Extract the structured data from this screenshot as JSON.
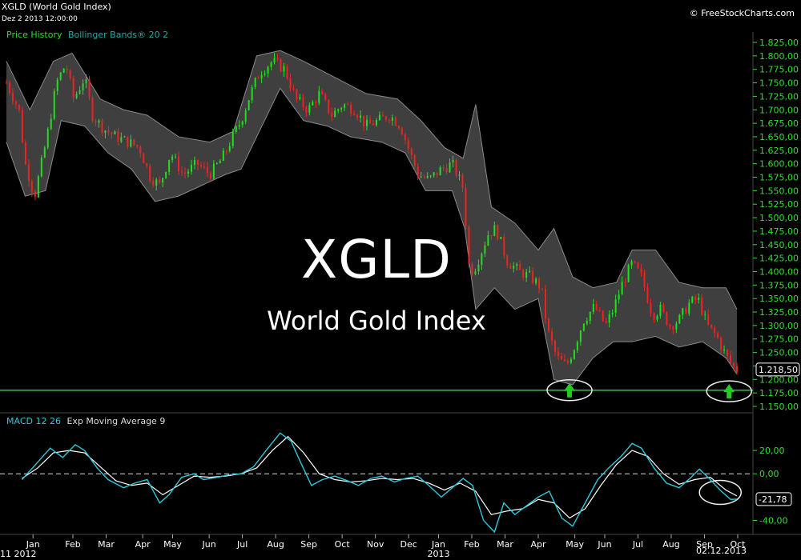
{
  "header": {
    "title": "XGLD (World Gold Index)",
    "date": "Dez 2 2013 12:00:00",
    "credit": "© FreeStockCharts.com",
    "legend_price": "Price History",
    "legend_bands": "Bollinger Bands® 20 2",
    "macd_label": "MACD 12 26",
    "macd_signal": "Exp Moving Average 9"
  },
  "watermark": {
    "title": "XGLD",
    "subtitle": "World Gold Index"
  },
  "colors": {
    "up": "#22dd22",
    "down": "#ee2222",
    "band": "#8a8a8a",
    "macd": "#2ec8d8",
    "signal": "#ffffff",
    "support": "#2ecc2e",
    "axis_text": "#33dd33",
    "arrow": "#22cc22"
  },
  "chart_data": [
    {
      "type": "line",
      "title": "XGLD (World Gold Index)",
      "series_name": "Price History",
      "overlay": "Bollinger Bands® 20 2",
      "ylim": [
        1150,
        1825
      ],
      "y_ticks": [
        "1.825,00",
        "1.800,00",
        "1.775,00",
        "1.750,00",
        "1.725,00",
        "1.700,00",
        "1.675,00",
        "1.650,00",
        "1.625,00",
        "1.600,00",
        "1.575,00",
        "1.550,00",
        "1.525,00",
        "1.500,00",
        "1.475,00",
        "1.450,00",
        "1.425,00",
        "1.400,00",
        "1.375,00",
        "1.350,00",
        "1.325,00",
        "1.300,00",
        "1.275,00",
        "1.250,00",
        "1.225,00",
        "1.200,00",
        "1.175,00",
        "1.150,00"
      ],
      "x_ticks": [
        "Jan",
        "Feb",
        "Mar",
        "Apr",
        "May",
        "Jun",
        "Jul",
        "Aug",
        "Sep",
        "Oct",
        "Nov",
        "Dec",
        "Jan",
        "Feb",
        "Mar",
        "Apr",
        "May",
        "Jun",
        "Jul",
        "Aug",
        "Sep",
        "Oct"
      ],
      "x_start_label": "11 2012",
      "x_year_label": "2013",
      "x_end_label": "02.12.2013",
      "last_value": 1218.5,
      "last_value_label": "1.218,50",
      "support_level": 1180,
      "price_path": [
        {
          "x": 0,
          "y": 1750
        },
        {
          "x": 0.8,
          "y": 1700
        },
        {
          "x": 1.2,
          "y": 1600
        },
        {
          "x": 1.8,
          "y": 1540
        },
        {
          "x": 2.6,
          "y": 1650
        },
        {
          "x": 3.2,
          "y": 1750
        },
        {
          "x": 3.8,
          "y": 1785
        },
        {
          "x": 4.3,
          "y": 1720
        },
        {
          "x": 5,
          "y": 1760
        },
        {
          "x": 5.5,
          "y": 1690
        },
        {
          "x": 6.2,
          "y": 1665
        },
        {
          "x": 7,
          "y": 1650
        },
        {
          "x": 7.8,
          "y": 1640
        },
        {
          "x": 8.5,
          "y": 1630
        },
        {
          "x": 9.2,
          "y": 1575
        },
        {
          "x": 9.8,
          "y": 1560
        },
        {
          "x": 10.5,
          "y": 1620
        },
        {
          "x": 11.3,
          "y": 1580
        },
        {
          "x": 12.2,
          "y": 1600
        },
        {
          "x": 13,
          "y": 1580
        },
        {
          "x": 13.8,
          "y": 1610
        },
        {
          "x": 14.3,
          "y": 1640
        },
        {
          "x": 15,
          "y": 1680
        },
        {
          "x": 15.6,
          "y": 1730
        },
        {
          "x": 16.2,
          "y": 1770
        },
        {
          "x": 17,
          "y": 1790
        },
        {
          "x": 17.8,
          "y": 1775
        },
        {
          "x": 18.5,
          "y": 1720
        },
        {
          "x": 19.3,
          "y": 1700
        },
        {
          "x": 20,
          "y": 1730
        },
        {
          "x": 20.8,
          "y": 1690
        },
        {
          "x": 21.5,
          "y": 1710
        },
        {
          "x": 22.3,
          "y": 1700
        },
        {
          "x": 23,
          "y": 1670
        },
        {
          "x": 23.8,
          "y": 1680
        },
        {
          "x": 24.5,
          "y": 1690
        },
        {
          "x": 25.2,
          "y": 1670
        },
        {
          "x": 25.8,
          "y": 1620
        },
        {
          "x": 26.3,
          "y": 1580
        },
        {
          "x": 27,
          "y": 1570
        },
        {
          "x": 27.8,
          "y": 1590
        },
        {
          "x": 28.5,
          "y": 1600
        },
        {
          "x": 29.2,
          "y": 1555
        },
        {
          "x": 29.6,
          "y": 1400
        },
        {
          "x": 30,
          "y": 1410
        },
        {
          "x": 30.8,
          "y": 1470
        },
        {
          "x": 31.3,
          "y": 1480
        },
        {
          "x": 32,
          "y": 1420
        },
        {
          "x": 32.8,
          "y": 1400
        },
        {
          "x": 33.5,
          "y": 1390
        },
        {
          "x": 34.2,
          "y": 1370
        },
        {
          "x": 34.6,
          "y": 1290
        },
        {
          "x": 35.2,
          "y": 1240
        },
        {
          "x": 35.8,
          "y": 1225
        },
        {
          "x": 36.3,
          "y": 1260
        },
        {
          "x": 36.9,
          "y": 1310
        },
        {
          "x": 37.6,
          "y": 1335
        },
        {
          "x": 38.3,
          "y": 1300
        },
        {
          "x": 38.8,
          "y": 1330
        },
        {
          "x": 39.4,
          "y": 1380
        },
        {
          "x": 40,
          "y": 1415
        },
        {
          "x": 40.6,
          "y": 1390
        },
        {
          "x": 41.3,
          "y": 1320
        },
        {
          "x": 41.8,
          "y": 1330
        },
        {
          "x": 42.4,
          "y": 1300
        },
        {
          "x": 43,
          "y": 1310
        },
        {
          "x": 43.6,
          "y": 1340
        },
        {
          "x": 44.2,
          "y": 1350
        },
        {
          "x": 44.8,
          "y": 1300
        },
        {
          "x": 45.4,
          "y": 1280
        },
        {
          "x": 45.9,
          "y": 1250
        },
        {
          "x": 46.4,
          "y": 1225
        },
        {
          "x": 46.7,
          "y": 1218.5
        }
      ],
      "upper_band": [
        {
          "x": 0,
          "y": 1790
        },
        {
          "x": 1.5,
          "y": 1700
        },
        {
          "x": 3,
          "y": 1790
        },
        {
          "x": 4.2,
          "y": 1805
        },
        {
          "x": 6,
          "y": 1720
        },
        {
          "x": 7.5,
          "y": 1700
        },
        {
          "x": 9,
          "y": 1690
        },
        {
          "x": 11,
          "y": 1650
        },
        {
          "x": 13,
          "y": 1640
        },
        {
          "x": 14.5,
          "y": 1660
        },
        {
          "x": 16,
          "y": 1800
        },
        {
          "x": 17.5,
          "y": 1810
        },
        {
          "x": 19,
          "y": 1790
        },
        {
          "x": 21,
          "y": 1760
        },
        {
          "x": 23,
          "y": 1730
        },
        {
          "x": 25,
          "y": 1720
        },
        {
          "x": 26.5,
          "y": 1680
        },
        {
          "x": 28,
          "y": 1630
        },
        {
          "x": 29.2,
          "y": 1610
        },
        {
          "x": 30,
          "y": 1710
        },
        {
          "x": 31,
          "y": 1520
        },
        {
          "x": 32.5,
          "y": 1490
        },
        {
          "x": 34,
          "y": 1440
        },
        {
          "x": 35,
          "y": 1480
        },
        {
          "x": 36.2,
          "y": 1390
        },
        {
          "x": 37.5,
          "y": 1370
        },
        {
          "x": 39,
          "y": 1380
        },
        {
          "x": 40,
          "y": 1440
        },
        {
          "x": 41.5,
          "y": 1440
        },
        {
          "x": 43,
          "y": 1380
        },
        {
          "x": 44.5,
          "y": 1370
        },
        {
          "x": 46,
          "y": 1370
        },
        {
          "x": 46.7,
          "y": 1330
        }
      ],
      "lower_band": [
        {
          "x": 0,
          "y": 1640
        },
        {
          "x": 1.2,
          "y": 1540
        },
        {
          "x": 2.5,
          "y": 1550
        },
        {
          "x": 3.5,
          "y": 1680
        },
        {
          "x": 5,
          "y": 1670
        },
        {
          "x": 6.5,
          "y": 1620
        },
        {
          "x": 8,
          "y": 1590
        },
        {
          "x": 9.5,
          "y": 1530
        },
        {
          "x": 11,
          "y": 1540
        },
        {
          "x": 12.5,
          "y": 1560
        },
        {
          "x": 14,
          "y": 1580
        },
        {
          "x": 15,
          "y": 1590
        },
        {
          "x": 16,
          "y": 1650
        },
        {
          "x": 17.5,
          "y": 1740
        },
        {
          "x": 19,
          "y": 1680
        },
        {
          "x": 20.5,
          "y": 1670
        },
        {
          "x": 22,
          "y": 1650
        },
        {
          "x": 24,
          "y": 1640
        },
        {
          "x": 25.5,
          "y": 1620
        },
        {
          "x": 26.8,
          "y": 1550
        },
        {
          "x": 28.5,
          "y": 1550
        },
        {
          "x": 29.3,
          "y": 1480
        },
        {
          "x": 30,
          "y": 1330
        },
        {
          "x": 31.2,
          "y": 1370
        },
        {
          "x": 32.5,
          "y": 1330
        },
        {
          "x": 34,
          "y": 1350
        },
        {
          "x": 35,
          "y": 1200
        },
        {
          "x": 36.2,
          "y": 1190
        },
        {
          "x": 37.5,
          "y": 1240
        },
        {
          "x": 38.8,
          "y": 1270
        },
        {
          "x": 40,
          "y": 1270
        },
        {
          "x": 41.5,
          "y": 1280
        },
        {
          "x": 43,
          "y": 1260
        },
        {
          "x": 44.5,
          "y": 1270
        },
        {
          "x": 46,
          "y": 1240
        },
        {
          "x": 46.7,
          "y": 1210
        }
      ]
    },
    {
      "type": "line",
      "title": "MACD 12 26",
      "series_names": [
        "MACD 12 26",
        "Exp Moving Average 9"
      ],
      "ylim": [
        -50,
        40
      ],
      "y_ticks": [
        "20,00",
        "0,00",
        "-40,00"
      ],
      "last_value_label": "-21,78",
      "zero_line": 0,
      "macd": [
        {
          "x": 1,
          "y": -5
        },
        {
          "x": 2,
          "y": 10
        },
        {
          "x": 2.8,
          "y": 22
        },
        {
          "x": 3.6,
          "y": 14
        },
        {
          "x": 4.4,
          "y": 25
        },
        {
          "x": 5,
          "y": 20
        },
        {
          "x": 5.8,
          "y": 5
        },
        {
          "x": 6.5,
          "y": -5
        },
        {
          "x": 7.5,
          "y": -12
        },
        {
          "x": 8.2,
          "y": -8
        },
        {
          "x": 9,
          "y": -5
        },
        {
          "x": 9.8,
          "y": -25
        },
        {
          "x": 10.4,
          "y": -18
        },
        {
          "x": 11.2,
          "y": -3
        },
        {
          "x": 12,
          "y": 0
        },
        {
          "x": 12.6,
          "y": -5
        },
        {
          "x": 13.5,
          "y": -3
        },
        {
          "x": 14.2,
          "y": -1
        },
        {
          "x": 15,
          "y": 0
        },
        {
          "x": 15.8,
          "y": 6
        },
        {
          "x": 16.6,
          "y": 20
        },
        {
          "x": 17.5,
          "y": 35
        },
        {
          "x": 18.2,
          "y": 28
        },
        {
          "x": 18.8,
          "y": 10
        },
        {
          "x": 19.5,
          "y": -10
        },
        {
          "x": 20.2,
          "y": -5
        },
        {
          "x": 21,
          "y": -2
        },
        {
          "x": 21.8,
          "y": -6
        },
        {
          "x": 22.5,
          "y": -10
        },
        {
          "x": 23.3,
          "y": -4
        },
        {
          "x": 24,
          "y": -2
        },
        {
          "x": 24.8,
          "y": -7
        },
        {
          "x": 25.5,
          "y": -4
        },
        {
          "x": 26.3,
          "y": -2
        },
        {
          "x": 27,
          "y": -10
        },
        {
          "x": 27.8,
          "y": -20
        },
        {
          "x": 28.5,
          "y": -12
        },
        {
          "x": 29.2,
          "y": -4
        },
        {
          "x": 29.8,
          "y": -10
        },
        {
          "x": 30.5,
          "y": -40
        },
        {
          "x": 31.2,
          "y": -50
        },
        {
          "x": 31.8,
          "y": -25
        },
        {
          "x": 32.5,
          "y": -35
        },
        {
          "x": 33.2,
          "y": -28
        },
        {
          "x": 34,
          "y": -20
        },
        {
          "x": 34.7,
          "y": -15
        },
        {
          "x": 35.5,
          "y": -38
        },
        {
          "x": 36.2,
          "y": -45
        },
        {
          "x": 37,
          "y": -25
        },
        {
          "x": 37.8,
          "y": -5
        },
        {
          "x": 38.5,
          "y": 5
        },
        {
          "x": 39.3,
          "y": 15
        },
        {
          "x": 40,
          "y": 26
        },
        {
          "x": 40.6,
          "y": 22
        },
        {
          "x": 41.4,
          "y": 5
        },
        {
          "x": 42.2,
          "y": -8
        },
        {
          "x": 43,
          "y": -12
        },
        {
          "x": 43.7,
          "y": -4
        },
        {
          "x": 44.3,
          "y": 4
        },
        {
          "x": 45,
          "y": -5
        },
        {
          "x": 45.7,
          "y": -15
        },
        {
          "x": 46.3,
          "y": -22
        },
        {
          "x": 46.7,
          "y": -21.78
        }
      ],
      "signal": [
        {
          "x": 1,
          "y": -4
        },
        {
          "x": 2,
          "y": 5
        },
        {
          "x": 3,
          "y": 18
        },
        {
          "x": 4,
          "y": 20
        },
        {
          "x": 5,
          "y": 18
        },
        {
          "x": 6,
          "y": 6
        },
        {
          "x": 7,
          "y": -6
        },
        {
          "x": 8,
          "y": -10
        },
        {
          "x": 9,
          "y": -8
        },
        {
          "x": 10,
          "y": -18
        },
        {
          "x": 11,
          "y": -10
        },
        {
          "x": 12,
          "y": -2
        },
        {
          "x": 13,
          "y": -3
        },
        {
          "x": 14,
          "y": -2
        },
        {
          "x": 15,
          "y": 0
        },
        {
          "x": 16,
          "y": 5
        },
        {
          "x": 17,
          "y": 20
        },
        {
          "x": 18,
          "y": 32
        },
        {
          "x": 19,
          "y": 18
        },
        {
          "x": 20,
          "y": 0
        },
        {
          "x": 21,
          "y": -5
        },
        {
          "x": 22,
          "y": -7
        },
        {
          "x": 23,
          "y": -6
        },
        {
          "x": 24,
          "y": -4
        },
        {
          "x": 25,
          "y": -5
        },
        {
          "x": 26,
          "y": -4
        },
        {
          "x": 27,
          "y": -8
        },
        {
          "x": 28,
          "y": -14
        },
        {
          "x": 29,
          "y": -8
        },
        {
          "x": 30,
          "y": -15
        },
        {
          "x": 31,
          "y": -35
        },
        {
          "x": 32,
          "y": -32
        },
        {
          "x": 33,
          "y": -30
        },
        {
          "x": 34,
          "y": -22
        },
        {
          "x": 35,
          "y": -25
        },
        {
          "x": 36,
          "y": -38
        },
        {
          "x": 37,
          "y": -30
        },
        {
          "x": 38,
          "y": -10
        },
        {
          "x": 39,
          "y": 8
        },
        {
          "x": 40,
          "y": 20
        },
        {
          "x": 41,
          "y": 15
        },
        {
          "x": 42,
          "y": 0
        },
        {
          "x": 43,
          "y": -9
        },
        {
          "x": 44,
          "y": -5
        },
        {
          "x": 45,
          "y": -3
        },
        {
          "x": 46,
          "y": -14
        },
        {
          "x": 46.7,
          "y": -19
        }
      ]
    }
  ]
}
